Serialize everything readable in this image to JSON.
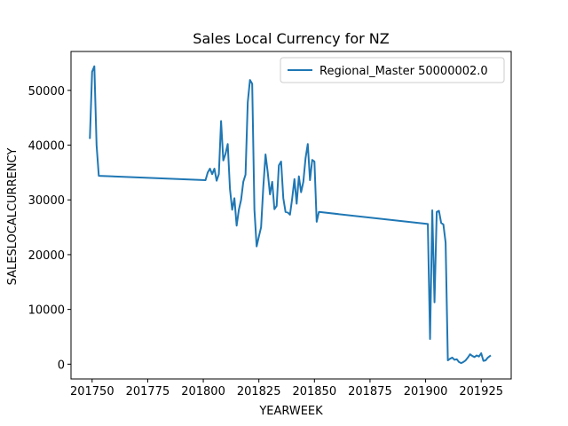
{
  "chart_data": {
    "type": "line",
    "title": "Sales Local Currency for NZ",
    "xlabel": "YEARWEEK",
    "ylabel": "SALESLOCALCURRENCY",
    "xlim": [
      201740.5,
      201938.5
    ],
    "ylim": [
      -2700,
      57100
    ],
    "xticks": [
      201750,
      201775,
      201800,
      201825,
      201850,
      201875,
      201900,
      201925
    ],
    "xtick_labels": [
      "201750",
      "201775",
      "201800",
      "201825",
      "201850",
      "201875",
      "201900",
      "201925"
    ],
    "yticks": [
      0,
      10000,
      20000,
      30000,
      40000,
      50000
    ],
    "ytick_labels": [
      "0",
      "10000",
      "20000",
      "30000",
      "40000",
      "50000"
    ],
    "grid": false,
    "legend_position": "top-right",
    "colors": {
      "series": "#1f77b4",
      "axes": "#000000",
      "background": "#ffffff"
    },
    "series": [
      {
        "name": "Regional_Master 50000002.0",
        "x": [
          201749,
          201750,
          201751,
          201752,
          201753,
          201801,
          201802,
          201803,
          201804,
          201805,
          201806,
          201807,
          201808,
          201809,
          201810,
          201811,
          201812,
          201813,
          201814,
          201815,
          201816,
          201817,
          201818,
          201819,
          201820,
          201821,
          201822,
          201823,
          201824,
          201825,
          201826,
          201827,
          201828,
          201829,
          201830,
          201831,
          201832,
          201833,
          201834,
          201835,
          201836,
          201837,
          201838,
          201839,
          201840,
          201841,
          201842,
          201843,
          201844,
          201845,
          201846,
          201847,
          201848,
          201849,
          201850,
          201851,
          201852,
          201901,
          201902,
          201903,
          201904,
          201905,
          201906,
          201907,
          201908,
          201909,
          201910,
          201911,
          201912,
          201913,
          201914,
          201915,
          201916,
          201917,
          201918,
          201919,
          201920,
          201921,
          201922,
          201923,
          201924,
          201925,
          201926,
          201927,
          201928,
          201929
        ],
        "values": [
          41300,
          53400,
          54400,
          40000,
          34400,
          33600,
          35000,
          35700,
          34700,
          35700,
          33500,
          34700,
          44400,
          37200,
          38400,
          40200,
          32000,
          28200,
          30300,
          25300,
          28200,
          30000,
          33300,
          34600,
          47800,
          51900,
          51200,
          28200,
          21500,
          23300,
          25000,
          32400,
          38300,
          35000,
          31000,
          33300,
          28300,
          28900,
          36300,
          37000,
          30300,
          27800,
          27700,
          27300,
          30300,
          33800,
          29300,
          34300,
          31400,
          33300,
          37600,
          40200,
          33600,
          37300,
          37000,
          26000,
          27800,
          25600,
          4600,
          28100,
          11300,
          27800,
          28000,
          25800,
          25500,
          22200,
          700,
          1000,
          1200,
          800,
          900,
          400,
          200,
          400,
          700,
          1200,
          1800,
          1500,
          1300,
          1600,
          1400,
          2000,
          600,
          700,
          1200,
          1500
        ]
      }
    ]
  }
}
